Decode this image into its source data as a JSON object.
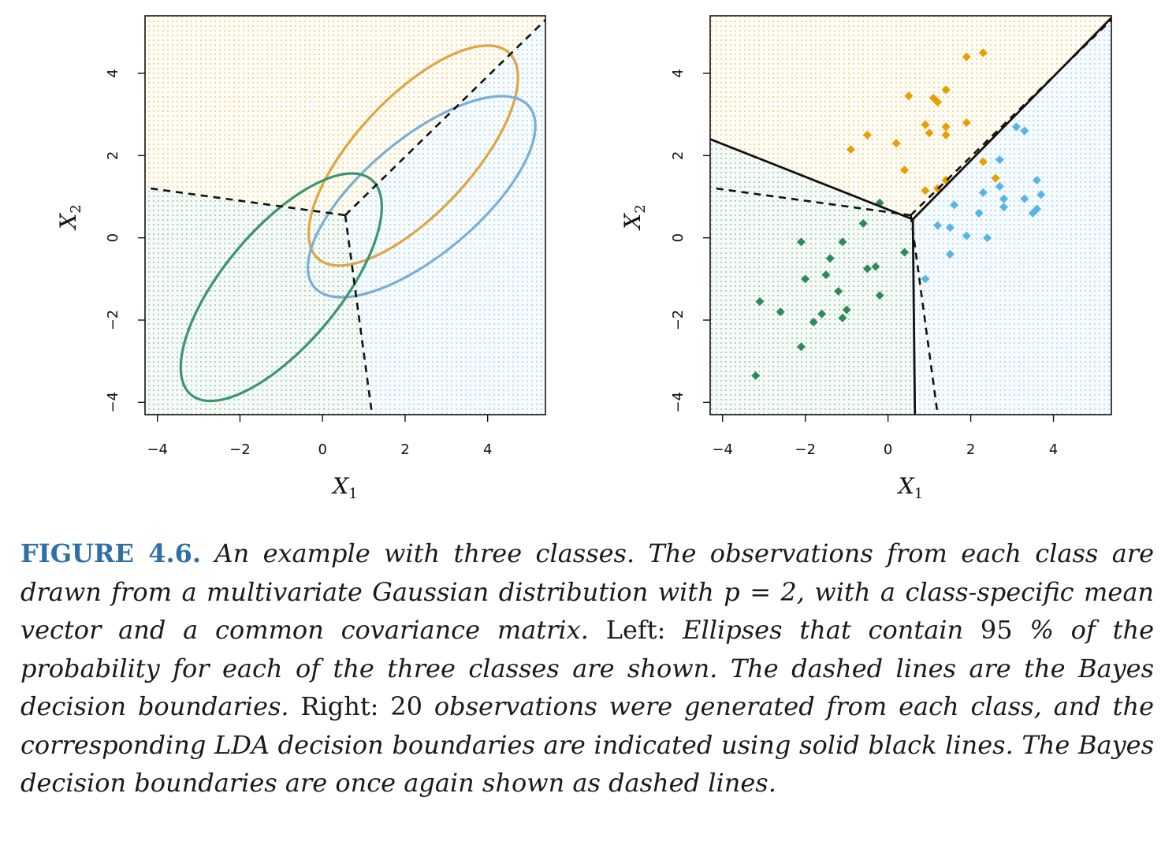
{
  "colors": {
    "orange": "#E69F00",
    "blue": "#56B4E9",
    "green": "#2E8B57",
    "orange_line": "#E0A540",
    "blue_line": "#7AAED6",
    "green_line": "#3A9670"
  },
  "caption": {
    "figure_label": "FIGURE 4.6.",
    "segments": [
      {
        "style": "it",
        "text": " An example with three classes. The observations from each class are drawn from a multivariate Gaussian distribution with p = 2, with a class-specific mean vector and a common covariance matrix. "
      },
      {
        "style": "rm",
        "text": "Left: "
      },
      {
        "style": "it",
        "text": "Ellipses that contain "
      },
      {
        "style": "rm",
        "text": "95 "
      },
      {
        "style": "it",
        "text": "% of the probability for each of the three classes are shown. The dashed lines are the Bayes decision boundaries. "
      },
      {
        "style": "rm",
        "text": "Right: 20 "
      },
      {
        "style": "it",
        "text": "observations were generated from each class, and the corresponding LDA decision boundaries are indicated using solid black lines. The Bayes decision boundaries are once again shown as dashed lines."
      }
    ]
  },
  "chart_data": [
    {
      "type": "scatter",
      "panel": "left",
      "xlabel": "X",
      "xlabel_sub": "1",
      "ylabel": "X",
      "ylabel_sub": "2",
      "xlim": [
        -4.3,
        5.4
      ],
      "ylim": [
        -4.3,
        5.4
      ],
      "xticks": [
        -4,
        -2,
        0,
        2,
        4
      ],
      "yticks": [
        -4,
        -2,
        0,
        2,
        4
      ],
      "regions": {
        "top": "orange",
        "left_bottom": "green",
        "right": "blue"
      },
      "ellipses": [
        {
          "class": "orange",
          "cx": 2.2,
          "cy": 2.0,
          "rx": 3.4,
          "ry": 1.4,
          "angle_deg": 47
        },
        {
          "class": "blue",
          "cx": 2.4,
          "cy": 1.0,
          "rx": 3.4,
          "ry": 1.4,
          "angle_deg": 40
        },
        {
          "class": "green",
          "cx": -1.0,
          "cy": -1.2,
          "rx": 3.4,
          "ry": 1.4,
          "angle_deg": 50
        }
      ],
      "bayes_boundaries": [
        {
          "points": [
            [
              0.55,
              0.55
            ],
            [
              -4.3,
              1.22
            ]
          ]
        },
        {
          "points": [
            [
              0.55,
              0.55
            ],
            [
              5.4,
              5.3
            ]
          ]
        },
        {
          "points": [
            [
              0.55,
              0.55
            ],
            [
              1.2,
              -4.3
            ]
          ]
        }
      ]
    },
    {
      "type": "scatter",
      "panel": "right",
      "xlabel": "X",
      "xlabel_sub": "1",
      "ylabel": "X",
      "ylabel_sub": "2",
      "xlim": [
        -4.3,
        5.4
      ],
      "ylim": [
        -4.3,
        5.4
      ],
      "xticks": [
        -4,
        -2,
        0,
        2,
        4
      ],
      "yticks": [
        -4,
        -2,
        0,
        2,
        4
      ],
      "series": [
        {
          "class": "orange",
          "points": [
            [
              1.9,
              4.4
            ],
            [
              2.3,
              4.5
            ],
            [
              0.5,
              3.45
            ],
            [
              1.1,
              3.4
            ],
            [
              1.2,
              3.3
            ],
            [
              1.4,
              3.6
            ],
            [
              0.9,
              2.75
            ],
            [
              1.0,
              2.55
            ],
            [
              1.4,
              2.7
            ],
            [
              1.4,
              2.5
            ],
            [
              1.9,
              2.8
            ],
            [
              -0.5,
              2.5
            ],
            [
              -0.9,
              2.15
            ],
            [
              0.2,
              2.3
            ],
            [
              0.4,
              1.65
            ],
            [
              2.3,
              1.85
            ],
            [
              2.6,
              1.45
            ],
            [
              1.4,
              1.4
            ],
            [
              1.2,
              1.2
            ],
            [
              0.9,
              1.15
            ]
          ]
        },
        {
          "class": "blue",
          "points": [
            [
              3.1,
              2.7
            ],
            [
              3.3,
              2.6
            ],
            [
              2.7,
              1.9
            ],
            [
              3.6,
              1.4
            ],
            [
              2.7,
              1.25
            ],
            [
              2.3,
              1.1
            ],
            [
              2.8,
              0.95
            ],
            [
              3.3,
              0.95
            ],
            [
              3.7,
              1.05
            ],
            [
              1.6,
              0.8
            ],
            [
              2.8,
              0.75
            ],
            [
              3.6,
              0.7
            ],
            [
              3.5,
              0.6
            ],
            [
              2.2,
              0.6
            ],
            [
              1.2,
              0.3
            ],
            [
              1.5,
              0.25
            ],
            [
              1.9,
              0.05
            ],
            [
              2.4,
              0.0
            ],
            [
              1.5,
              -0.4
            ],
            [
              0.9,
              -1.0
            ]
          ]
        },
        {
          "class": "green",
          "points": [
            [
              -0.2,
              0.85
            ],
            [
              -0.6,
              0.35
            ],
            [
              -2.1,
              -0.1
            ],
            [
              -1.1,
              -0.1
            ],
            [
              -1.4,
              -0.5
            ],
            [
              0.4,
              -0.35
            ],
            [
              -0.5,
              -0.75
            ],
            [
              -0.3,
              -0.7
            ],
            [
              -1.5,
              -0.9
            ],
            [
              -2.0,
              -1.0
            ],
            [
              -1.2,
              -1.3
            ],
            [
              -3.1,
              -1.55
            ],
            [
              -2.6,
              -1.8
            ],
            [
              -1.0,
              -1.75
            ],
            [
              -1.6,
              -1.85
            ],
            [
              -1.8,
              -2.05
            ],
            [
              -1.1,
              -1.95
            ],
            [
              -0.2,
              -1.4
            ],
            [
              -2.1,
              -2.65
            ],
            [
              -3.2,
              -3.35
            ]
          ]
        }
      ],
      "lda_boundaries": [
        {
          "points": [
            [
              0.6,
              0.45
            ],
            [
              -4.3,
              2.4
            ]
          ]
        },
        {
          "points": [
            [
              0.6,
              0.45
            ],
            [
              5.4,
              5.35
            ]
          ]
        },
        {
          "points": [
            [
              0.6,
              0.45
            ],
            [
              0.65,
              -4.3
            ]
          ]
        }
      ],
      "bayes_boundaries": [
        {
          "points": [
            [
              0.55,
              0.55
            ],
            [
              -4.3,
              1.22
            ]
          ]
        },
        {
          "points": [
            [
              0.55,
              0.55
            ],
            [
              5.4,
              5.3
            ]
          ]
        },
        {
          "points": [
            [
              0.55,
              0.55
            ],
            [
              1.2,
              -4.3
            ]
          ]
        }
      ]
    }
  ]
}
